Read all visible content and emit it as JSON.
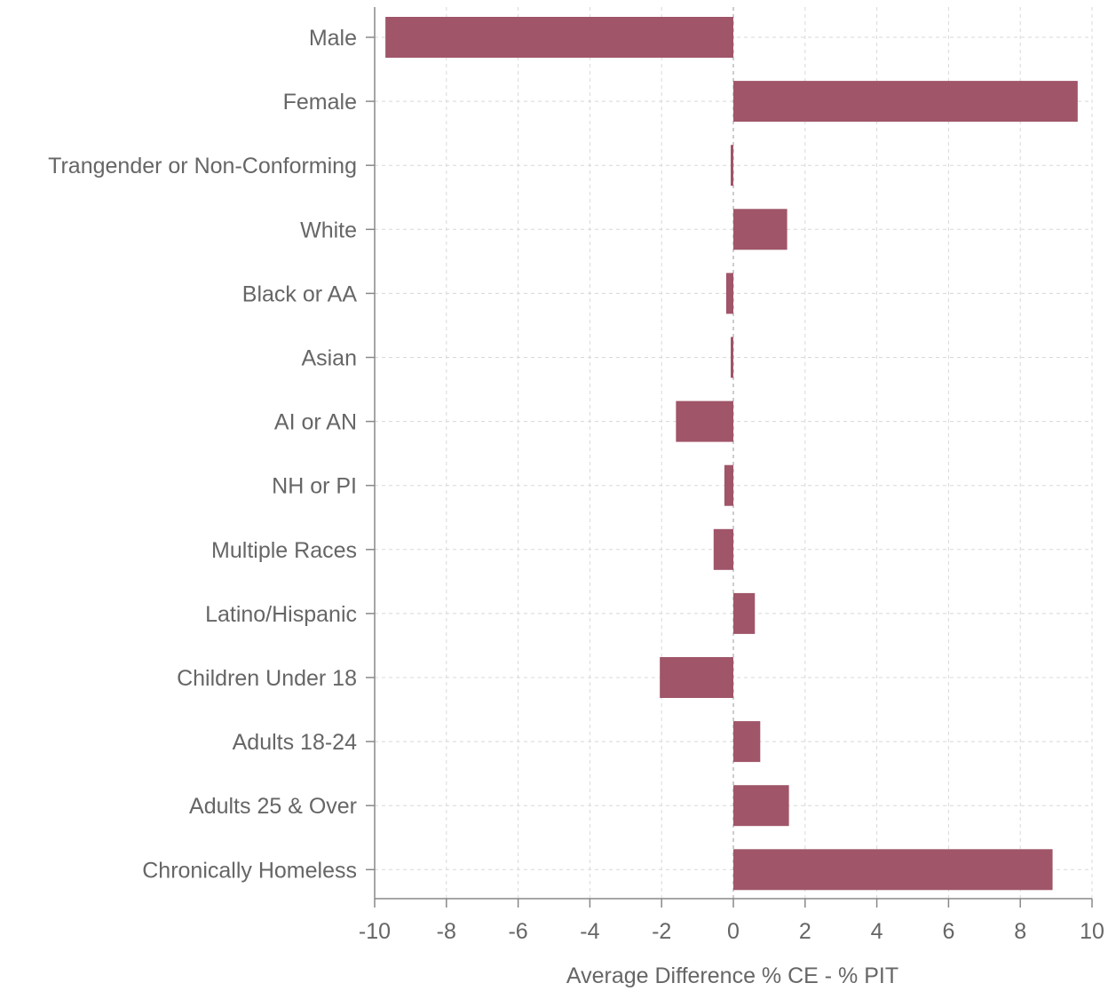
{
  "chart_data": {
    "type": "bar",
    "orientation": "horizontal",
    "categories": [
      "Male",
      "Female",
      "Trangender or Non-Conforming",
      "White",
      "Black or AA",
      "Asian",
      "AI or AN",
      "NH or PI",
      "Multiple Races",
      "Latino/Hispanic",
      "Children Under 18",
      "Adults 18-24",
      "Adults 25 & Over",
      "Chronically Homeless"
    ],
    "values": [
      -9.7,
      9.6,
      -0.05,
      1.5,
      -0.2,
      -0.05,
      -1.6,
      -0.25,
      -0.55,
      0.6,
      -2.05,
      0.75,
      1.55,
      8.9
    ],
    "xlabel": "Average Difference % CE - % PIT",
    "ylabel": "",
    "xlim": [
      -10,
      10
    ],
    "xticks": [
      -10,
      -8,
      -6,
      -4,
      -2,
      0,
      2,
      4,
      6,
      8,
      10
    ],
    "grid": true,
    "bar_color": "#a05569"
  }
}
